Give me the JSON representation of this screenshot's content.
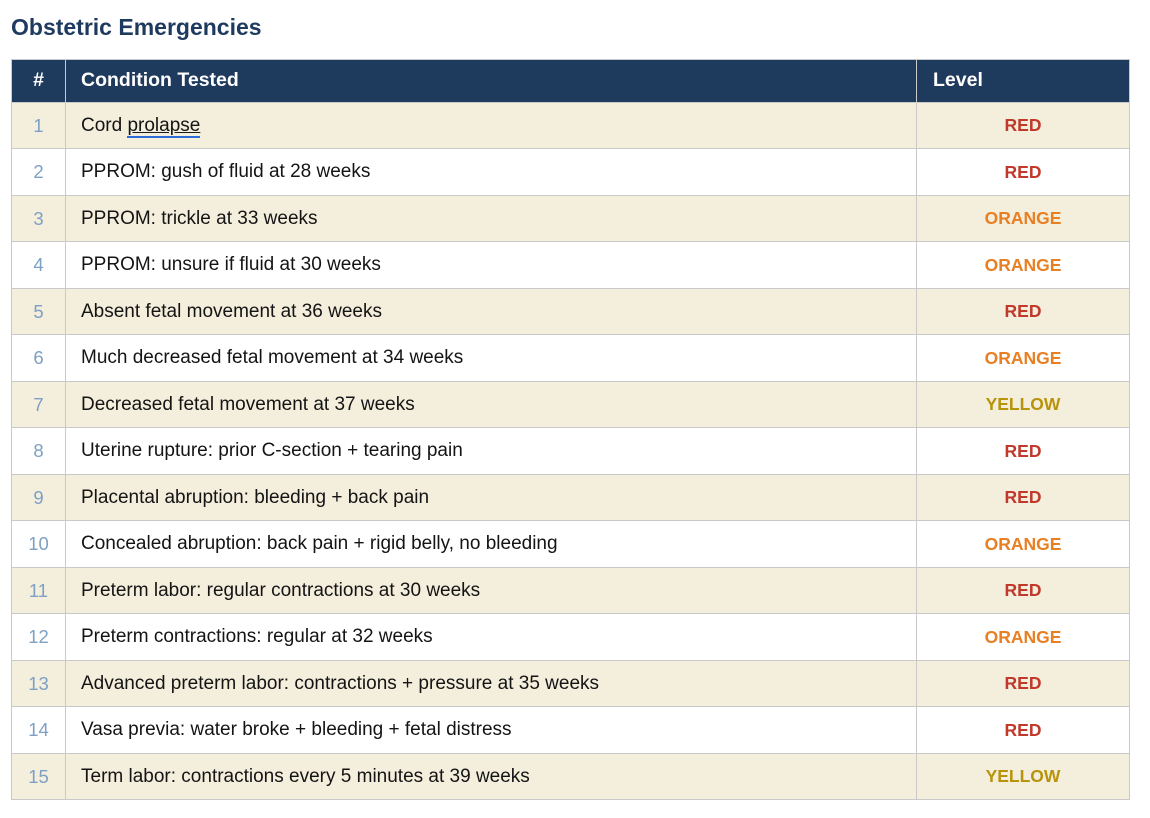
{
  "page_title": "Obstetric Emergencies",
  "table": {
    "columns": {
      "number": "#",
      "condition": "Condition Tested",
      "level": "Level"
    },
    "rows": [
      {
        "number": "1",
        "condition": "Cord prolapse",
        "underlined_text": "prolapse",
        "level": "RED"
      },
      {
        "number": "2",
        "condition": "PPROM: gush of fluid at 28 weeks",
        "level": "RED"
      },
      {
        "number": "3",
        "condition": "PPROM: trickle at 33 weeks",
        "level": "ORANGE"
      },
      {
        "number": "4",
        "condition": "PPROM: unsure if fluid at 30 weeks",
        "level": "ORANGE"
      },
      {
        "number": "5",
        "condition": "Absent fetal movement at 36 weeks",
        "level": "RED"
      },
      {
        "number": "6",
        "condition": "Much decreased fetal movement at 34 weeks",
        "level": "ORANGE"
      },
      {
        "number": "7",
        "condition": "Decreased fetal movement at 37 weeks",
        "level": "YELLOW"
      },
      {
        "number": "8",
        "condition": "Uterine rupture: prior C-section + tearing pain",
        "level": "RED"
      },
      {
        "number": "9",
        "condition": "Placental abruption: bleeding + back pain",
        "level": "RED"
      },
      {
        "number": "10",
        "condition": "Concealed abruption: back pain + rigid belly, no bleeding",
        "level": "ORANGE"
      },
      {
        "number": "11",
        "condition": "Preterm labor: regular contractions at 30 weeks",
        "level": "RED"
      },
      {
        "number": "12",
        "condition": "Preterm contractions: regular at 32 weeks",
        "level": "ORANGE"
      },
      {
        "number": "13",
        "condition": "Advanced preterm labor: contractions + pressure at 35 weeks",
        "level": "RED"
      },
      {
        "number": "14",
        "condition": "Vasa previa: water broke + bleeding + fetal distress",
        "level": "RED"
      },
      {
        "number": "15",
        "condition": "Term labor: contractions every 5 minutes at 39 weeks",
        "level": "YELLOW"
      }
    ]
  },
  "colors": {
    "title": "#1e3a5f",
    "header_background": "#1e3a5c",
    "header_text": "#ffffff",
    "stripe_row": "#f4eedd",
    "row_number": "#7da0c4",
    "border": "#c9c9c9",
    "underline_link": "#2e6bd8",
    "levels": {
      "RED": "#c0392b",
      "ORANGE": "#e87f22",
      "YELLOW": "#b8940c"
    }
  }
}
